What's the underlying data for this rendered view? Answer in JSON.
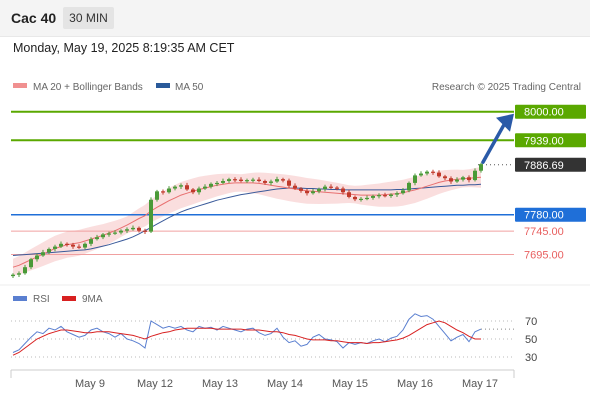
{
  "header": {
    "symbol": "Cac 40",
    "interval": "30 MIN",
    "timestamp": "Monday, May 19, 2025 8:19:35 AM CET"
  },
  "legend": {
    "ma20": "MA 20 + Bollinger Bands",
    "ma50": "MA 50",
    "credit": "Research © 2025 Trading Central",
    "rsi": "RSI",
    "rsi_ma": "9MA"
  },
  "colors": {
    "green_level": "#5aa800",
    "current_price": "#333333",
    "support_blue": "#1f6fd8",
    "support_red": "#e86060",
    "ma20": "#e87070",
    "ma50": "#3a5a9a",
    "bollinger_fill": "#f8d0d0",
    "candle_up": "#4a9a38",
    "candle_down": "#c0392b",
    "forecast_arrow": "#2a5aa8",
    "rsi_line": "#5a7fd0",
    "rsi_ma_line": "#d82020"
  },
  "chart_data": [
    {
      "type": "candlestick",
      "ylim": [
        7630,
        8025
      ],
      "x_tick_labels": [
        "May 9",
        "May 12",
        "May 13",
        "May 14",
        "May 15",
        "May 16",
        "May 17"
      ],
      "levels": [
        {
          "value": 8000.0,
          "label": "8000.00",
          "kind": "resistance"
        },
        {
          "value": 7939.0,
          "label": "7939.00",
          "kind": "resistance"
        },
        {
          "value": 7886.69,
          "label": "7886.69",
          "kind": "current"
        },
        {
          "value": 7780.0,
          "label": "7780.00",
          "kind": "pivot"
        },
        {
          "value": 7745.0,
          "label": "7745.00",
          "kind": "support"
        },
        {
          "value": 7695.0,
          "label": "7695.00",
          "kind": "support"
        }
      ],
      "close": [
        7652,
        7655,
        7668,
        7685,
        7693,
        7700,
        7707,
        7712,
        7718,
        7716,
        7712,
        7710,
        7718,
        7728,
        7732,
        7738,
        7740,
        7742,
        7746,
        7749,
        7752,
        7746,
        7744,
        7812,
        7830,
        7828,
        7836,
        7840,
        7843,
        7834,
        7828,
        7836,
        7840,
        7846,
        7848,
        7852,
        7856,
        7855,
        7852,
        7854,
        7855,
        7852,
        7848,
        7851,
        7856,
        7853,
        7842,
        7836,
        7831,
        7826,
        7830,
        7835,
        7840,
        7838,
        7836,
        7828,
        7818,
        7813,
        7814,
        7816,
        7820,
        7822,
        7820,
        7823,
        7826,
        7832,
        7848,
        7864,
        7868,
        7872,
        7870,
        7862,
        7858,
        7851,
        7855,
        7860,
        7854,
        7874,
        7888
      ],
      "ma20": [
        7668,
        7672,
        7678,
        7684,
        7690,
        7696,
        7702,
        7708,
        7712,
        7716,
        7718,
        7720,
        7724,
        7728,
        7732,
        7736,
        7741,
        7746,
        7752,
        7758,
        7765,
        7772,
        7778,
        7788,
        7796,
        7803,
        7810,
        7816,
        7822,
        7826,
        7830,
        7834,
        7837,
        7840,
        7843,
        7845,
        7847,
        7848,
        7848,
        7848,
        7848,
        7847,
        7845,
        7843,
        7841,
        7839,
        7837,
        7835,
        7833,
        7831,
        7830,
        7829,
        7828,
        7827,
        7826,
        7825,
        7824,
        7823,
        7822,
        7822,
        7822,
        7822,
        7823,
        7824,
        7825,
        7827,
        7830,
        7833,
        7837,
        7841,
        7845,
        7849,
        7852,
        7854,
        7856,
        7857,
        7858,
        7859,
        7860
      ],
      "ma50": [
        7693,
        7694,
        7695,
        7696,
        7697,
        7698,
        7699,
        7700,
        7701,
        7702,
        7703,
        7704,
        7705,
        7707,
        7710,
        7713,
        7716,
        7720,
        7724,
        7728,
        7733,
        7739,
        7746,
        7753,
        7760,
        7767,
        7774,
        7780,
        7786,
        7791,
        7795,
        7799,
        7803,
        7807,
        7811,
        7814,
        7817,
        7820,
        7823,
        7825,
        7827,
        7829,
        7831,
        7833,
        7835,
        7836,
        7837,
        7837,
        7837,
        7836,
        7836,
        7835,
        7835,
        7834,
        7834,
        7833,
        7833,
        7833,
        7833,
        7833,
        7833,
        7833,
        7833,
        7833,
        7834,
        7834,
        7835,
        7836,
        7837,
        7838,
        7839,
        7840,
        7841,
        7842,
        7843,
        7843,
        7844,
        7844,
        7845
      ]
    },
    {
      "type": "line",
      "ylim": [
        20,
        80
      ],
      "y_ticks": [
        70,
        50,
        30
      ],
      "series": [
        {
          "name": "RSI",
          "values": [
            35,
            38,
            45,
            52,
            58,
            56,
            62,
            60,
            64,
            58,
            55,
            52,
            54,
            60,
            62,
            58,
            56,
            52,
            56,
            50,
            48,
            45,
            40,
            70,
            66,
            62,
            64,
            62,
            64,
            60,
            58,
            64,
            62,
            63,
            60,
            64,
            62,
            60,
            58,
            61,
            62,
            57,
            54,
            56,
            62,
            52,
            46,
            48,
            42,
            44,
            52,
            55,
            50,
            49,
            47,
            40,
            46,
            44,
            46,
            45,
            48,
            50,
            47,
            51,
            53,
            60,
            72,
            78,
            75,
            76,
            72,
            64,
            56,
            48,
            52,
            55,
            47,
            58,
            61
          ]
        },
        {
          "name": "9MA",
          "values": [
            32,
            35,
            40,
            45,
            50,
            53,
            56,
            58,
            60,
            60,
            59,
            58,
            57,
            57,
            58,
            58,
            58,
            57,
            56,
            55,
            54,
            52,
            50,
            53,
            55,
            57,
            58,
            60,
            61,
            62,
            62,
            62,
            62,
            62,
            61,
            61,
            61,
            61,
            61,
            60,
            60,
            60,
            59,
            58,
            58,
            57,
            55,
            54,
            52,
            50,
            49,
            49,
            49,
            48,
            48,
            47,
            46,
            46,
            46,
            45,
            46,
            46,
            47,
            48,
            49,
            51,
            54,
            58,
            62,
            66,
            68,
            70,
            68,
            64,
            60,
            57,
            53,
            50,
            50
          ]
        }
      ]
    }
  ]
}
